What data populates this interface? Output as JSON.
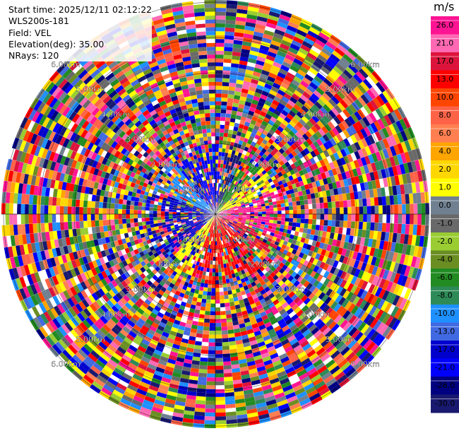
{
  "info": {
    "start_time": "Start time: 2025/12/11 02:12:22",
    "device": "WLS200s-181",
    "field": "Field: VEL",
    "elevation": "Elevation(deg): 35.00",
    "nrays": "NRays: 120"
  },
  "colorbar": {
    "unit": "m/s",
    "ticks": [
      "26.0",
      "21.0",
      "17.0",
      "13.0",
      "10.0",
      "8.0",
      "6.0",
      "4.0",
      "2.0",
      "1.0",
      "0.0",
      "-1.0",
      "-2.0",
      "-4.0",
      "-6.0",
      "-8.0",
      "-10.0",
      "-13.0",
      "-17.0",
      "-21.0",
      "-26.0",
      "-30.0"
    ],
    "colors": [
      "#ff1493",
      "#ff69b4",
      "#dc143c",
      "#ff0000",
      "#ff4500",
      "#ff6347",
      "#ff7f50",
      "#ffa500",
      "#ffd700",
      "#ffff00",
      "#708090",
      "#696969",
      "#9acd32",
      "#6b8e23",
      "#228b22",
      "#2e8b57",
      "#1e90ff",
      "#4169e1",
      "#0000cd",
      "#0000ff",
      "#000080",
      "#191970"
    ]
  },
  "chart_data": {
    "type": "heatmap",
    "projection": "PPI polar",
    "field": "VEL",
    "units": "m/s",
    "n_rays": 120,
    "range_rings_km": [
      "1.00km",
      "2.00km",
      "3.00km",
      "4.00km",
      "5.00km"
    ],
    "ring_label_texts": [
      "1.00km",
      "2.00km",
      "3.00km",
      "4.00km",
      "5.00km",
      "6.00km"
    ],
    "vmin": -30,
    "vmax": 30,
    "grid": true
  }
}
